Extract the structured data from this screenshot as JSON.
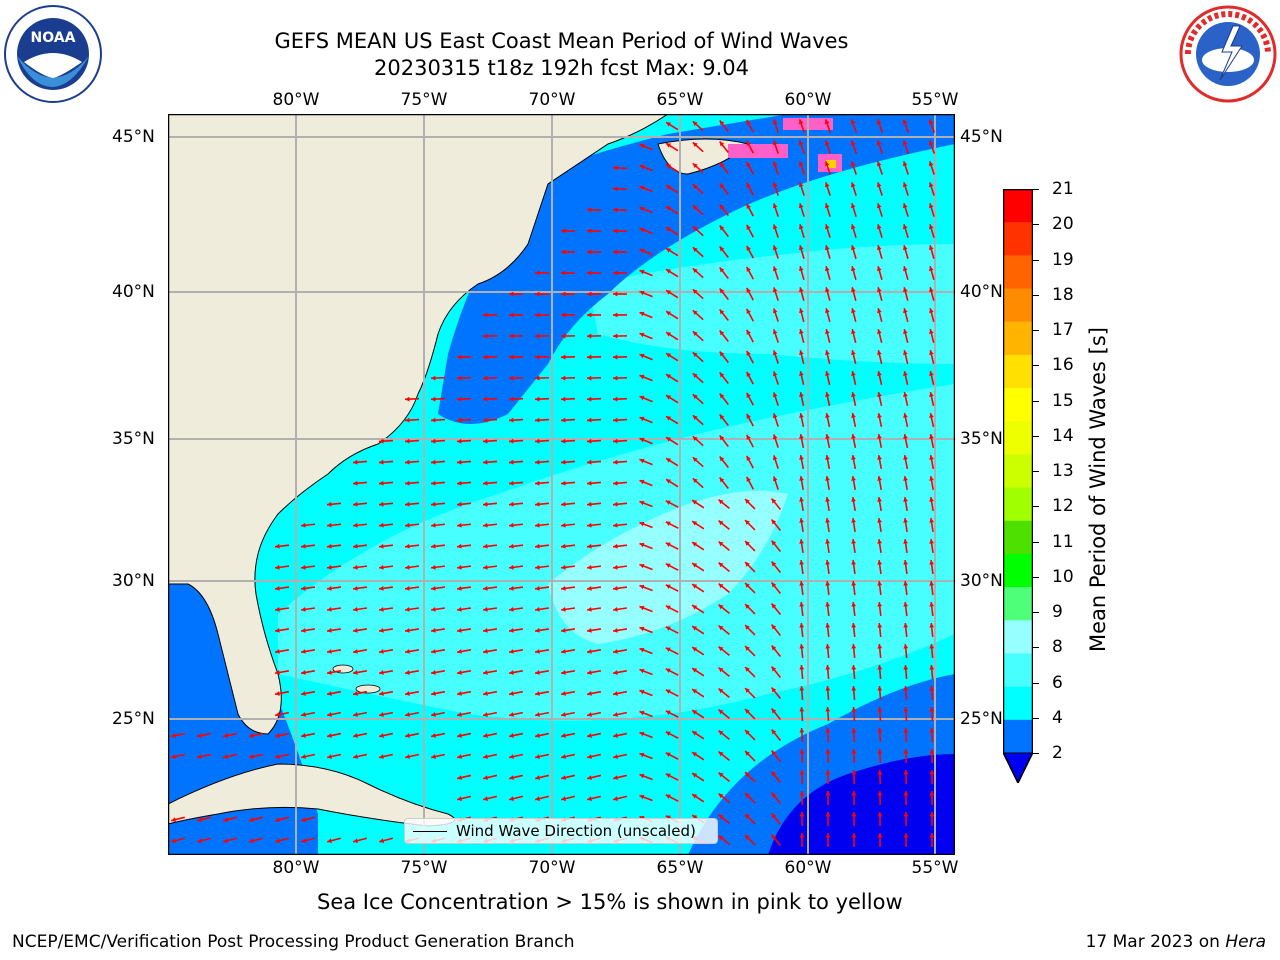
{
  "title": {
    "line1": "GEFS MEAN US East Coast Mean Period of Wind Waves",
    "line2": "20230315 t18z 192h fcst   Max: 9.04"
  },
  "map": {
    "lon_labels": [
      "80°W",
      "75°W",
      "70°W",
      "65°W",
      "60°W",
      "55°W"
    ],
    "lat_labels": [
      "45°N",
      "40°N",
      "35°N",
      "30°N",
      "25°N"
    ],
    "gridlines": true,
    "land_color": "#efecdc",
    "arrow_color": "#ff0000",
    "legend": {
      "entry": "Wind Wave Direction (unscaled)"
    }
  },
  "colorbar": {
    "label": "Mean Period of Wind Waves [s]",
    "ticks": [
      "2",
      "4",
      "6",
      "8",
      "9",
      "10",
      "11",
      "12",
      "13",
      "14",
      "15",
      "16",
      "17",
      "18",
      "19",
      "20",
      "21"
    ],
    "colors": [
      "#0074ff",
      "#00ffff",
      "#48ffff",
      "#96ffff",
      "#4eff7a",
      "#00ff00",
      "#4ee000",
      "#a0ff00",
      "#ccff00",
      "#eeff00",
      "#ffff00",
      "#ffe000",
      "#ffb400",
      "#ff8c00",
      "#ff6400",
      "#ff3200",
      "#ff0000"
    ],
    "extend_color": "#0000f0"
  },
  "caption": "Sea Ice Concentration > 15% is shown in pink to yellow",
  "footer": {
    "left": "NCEP/EMC/Verification Post Processing Product Generation Branch",
    "right_prefix": "17 Mar 2023 on ",
    "right_host": "Hera"
  },
  "logos": {
    "noaa": "NOAA",
    "noaa_ring": "NATIONAL OCEANIC AND ATMOSPHERIC ADMINISTRATION · U.S. DEPARTMENT OF COMMERCE",
    "nws_ring": "NATIONAL WEATHER SERVICE"
  }
}
